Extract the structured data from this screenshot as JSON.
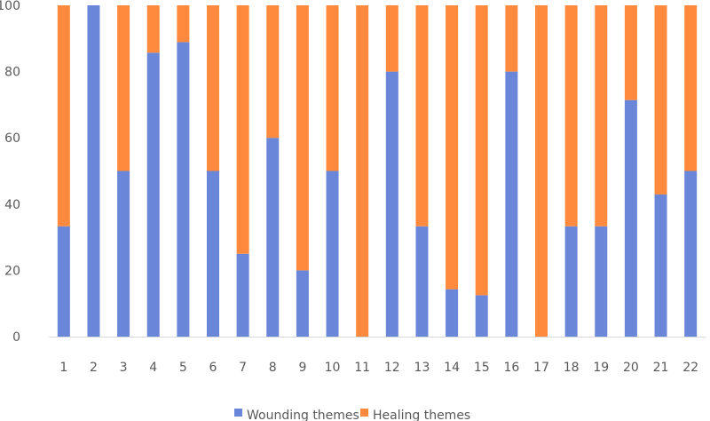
{
  "chart_data": {
    "type": "bar",
    "stacked": true,
    "categories": [
      "1",
      "2",
      "3",
      "4",
      "5",
      "6",
      "7",
      "8",
      "9",
      "10",
      "11",
      "12",
      "13",
      "14",
      "15",
      "16",
      "17",
      "18",
      "19",
      "20",
      "21",
      "22"
    ],
    "series": [
      {
        "name": "Wounding themes",
        "color": "#6A86D8",
        "values": [
          33.3,
          100,
          50,
          85.7,
          88.9,
          50,
          25,
          60,
          20,
          50,
          0,
          80,
          33.3,
          14.3,
          12.5,
          80,
          0,
          33.3,
          33.3,
          71.4,
          42.9,
          50
        ]
      },
      {
        "name": "Healing themes",
        "color": "#FF8A3D",
        "values": [
          66.7,
          0,
          50,
          14.3,
          11.1,
          50,
          75,
          40,
          80,
          50,
          100,
          20,
          66.7,
          85.7,
          87.5,
          20,
          100,
          66.7,
          66.7,
          28.6,
          57.1,
          50
        ]
      }
    ],
    "y_ticks": [
      "0",
      "20",
      "40",
      "60",
      "80",
      "100"
    ],
    "ylim": [
      0,
      100
    ],
    "grid": false,
    "legend_position": "bottom"
  }
}
